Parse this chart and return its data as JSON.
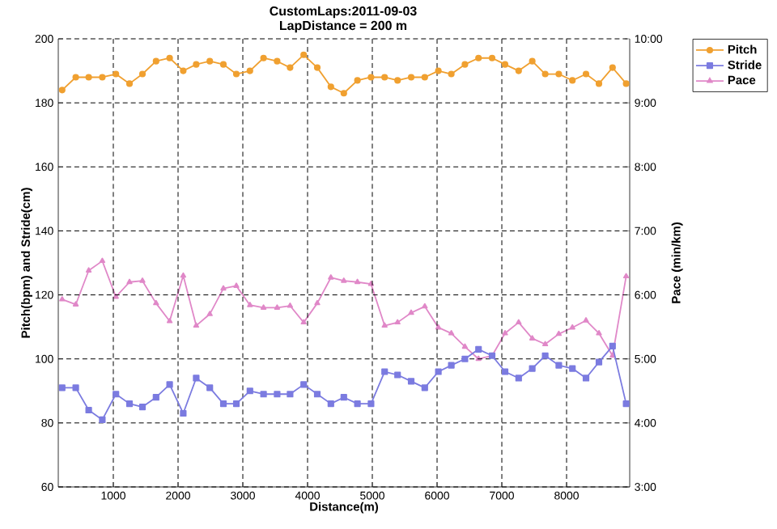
{
  "chart_data": {
    "type": "line",
    "title": "CustomLaps:2011-09-03",
    "subtitle": "LapDistance = 200 m",
    "xlabel": "Distance(m)",
    "ylabel": "Pitch(bpm) and Stride(cm)",
    "y2label": "Pace (min/km)",
    "x": [
      210,
      420,
      620,
      830,
      1040,
      1250,
      1450,
      1660,
      1870,
      2080,
      2280,
      2490,
      2700,
      2900,
      3110,
      3320,
      3530,
      3730,
      3940,
      4150,
      4360,
      4560,
      4770,
      4980,
      5190,
      5390,
      5600,
      5810,
      6020,
      6220,
      6430,
      6640,
      6850,
      7050,
      7260,
      7470,
      7670,
      7880,
      8090,
      8300,
      8500,
      8710,
      8920
    ],
    "series": [
      {
        "name": "Pitch",
        "color": "#f0a030",
        "marker": "circle",
        "values": [
          184,
          188,
          188,
          188,
          189,
          186,
          189,
          193,
          194,
          190,
          192,
          193,
          192,
          189,
          190,
          194,
          193,
          191,
          195,
          191,
          185,
          183,
          187,
          188,
          188,
          187,
          188,
          188,
          190,
          189,
          192,
          194,
          194,
          192,
          190,
          193,
          189,
          189,
          187,
          189,
          186,
          191,
          186
        ]
      },
      {
        "name": "Stride",
        "color": "#7b7be0",
        "marker": "square",
        "values": [
          91,
          91,
          84,
          81,
          89,
          86,
          85,
          88,
          92,
          83,
          94,
          91,
          86,
          86,
          90,
          89,
          89,
          89,
          92,
          89,
          86,
          88,
          86,
          86,
          96,
          95,
          93,
          91,
          96,
          98,
          100,
          103,
          101,
          96,
          94,
          97,
          101,
          98,
          97,
          94,
          99,
          104,
          86
        ]
      },
      {
        "name": "Pace",
        "color": "#e088c8",
        "marker": "triangle",
        "axis": "y2",
        "values": [
          5.93,
          5.85,
          6.38,
          6.53,
          5.97,
          6.2,
          6.22,
          5.87,
          5.59,
          6.3,
          5.52,
          5.7,
          6.1,
          6.14,
          5.84,
          5.8,
          5.8,
          5.83,
          5.57,
          5.87,
          6.27,
          6.22,
          6.2,
          6.17,
          5.52,
          5.57,
          5.72,
          5.82,
          5.49,
          5.4,
          5.19,
          5.0,
          5.05,
          5.4,
          5.57,
          5.32,
          5.23,
          5.39,
          5.49,
          5.6,
          5.4,
          5.05,
          6.29
        ]
      }
    ],
    "xlim": [
      150,
      8975
    ],
    "xticks": [
      1000,
      2000,
      3000,
      4000,
      5000,
      6000,
      7000,
      8000
    ],
    "ylim": [
      60,
      200
    ],
    "yticks": [
      60,
      80,
      100,
      120,
      140,
      160,
      180,
      200
    ],
    "y2lim": [
      3,
      10
    ],
    "y2ticks": [
      {
        "value": 3,
        "label": "3:00"
      },
      {
        "value": 4,
        "label": "4:00"
      },
      {
        "value": 5,
        "label": "5:00"
      },
      {
        "value": 6,
        "label": "6:00"
      },
      {
        "value": 7,
        "label": "7:00"
      },
      {
        "value": 8,
        "label": "8:00"
      },
      {
        "value": 9,
        "label": "9:00"
      },
      {
        "value": 10,
        "label": "10:00"
      }
    ],
    "grid": true,
    "legend": "top right",
    "line_style": "solid"
  }
}
